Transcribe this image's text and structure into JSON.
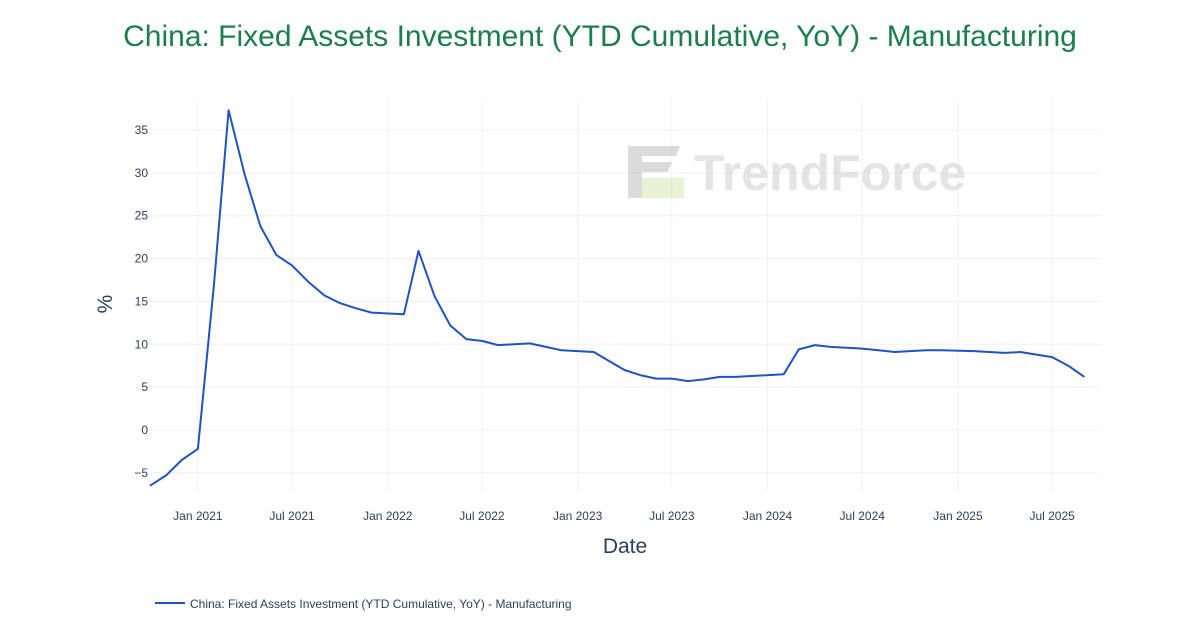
{
  "colors": {
    "title": "#1a7f4b",
    "line": "#1f53c4",
    "grid": "#eef0f4",
    "text": "#2a3f5f",
    "watermark": "#d9d9d9"
  },
  "watermark": {
    "logo_icon": "trendforce-logo-icon",
    "text": "TrendForce"
  },
  "chart_data": {
    "type": "line",
    "title": "China: Fixed Assets Investment (YTD Cumulative, YoY) - Manufacturing",
    "xlabel": "Date",
    "ylabel": "%",
    "ylim": [
      -7,
      38.5
    ],
    "xlim": [
      "2020-10-01",
      "2025-10-01"
    ],
    "grid": true,
    "legend_position": "bottom-left",
    "y_ticks": [
      "−5",
      "0",
      "5",
      "10",
      "15",
      "20",
      "25",
      "30",
      "35"
    ],
    "y_tick_values": [
      -5,
      0,
      5,
      10,
      15,
      20,
      25,
      30,
      35
    ],
    "x_ticks": [
      "Jan 2021",
      "Jul 2021",
      "Jan 2022",
      "Jul 2022",
      "Jan 2023",
      "Jul 2023",
      "Jan 2024",
      "Jul 2024",
      "Jan 2025",
      "Jul 2025"
    ],
    "x_tick_dates": [
      "2021-01-01",
      "2021-07-01",
      "2022-01-01",
      "2022-07-01",
      "2023-01-01",
      "2023-07-01",
      "2024-01-01",
      "2024-07-01",
      "2025-01-01",
      "2025-07-01"
    ],
    "series": [
      {
        "name": "China: Fixed Assets Investment (YTD Cumulative, YoY) - Manufacturing",
        "x": [
          "2020-10-01",
          "2020-11-01",
          "2020-12-01",
          "2021-01-01",
          "2021-02-01",
          "2021-03-01",
          "2021-04-01",
          "2021-05-01",
          "2021-06-01",
          "2021-07-01",
          "2021-08-01",
          "2021-09-01",
          "2021-10-01",
          "2021-11-01",
          "2021-12-01",
          "2022-02-01",
          "2022-03-01",
          "2022-04-01",
          "2022-05-01",
          "2022-06-01",
          "2022-07-01",
          "2022-08-01",
          "2022-09-01",
          "2022-10-01",
          "2022-11-01",
          "2022-12-01",
          "2023-02-01",
          "2023-03-01",
          "2023-04-01",
          "2023-05-01",
          "2023-06-01",
          "2023-07-01",
          "2023-08-01",
          "2023-09-01",
          "2023-10-01",
          "2023-11-01",
          "2023-12-01",
          "2024-02-01",
          "2024-03-01",
          "2024-04-01",
          "2024-05-01",
          "2024-06-01",
          "2024-07-01",
          "2024-08-01",
          "2024-09-01",
          "2024-10-01",
          "2024-11-01",
          "2024-12-01",
          "2025-02-01",
          "2025-03-01",
          "2025-04-01",
          "2025-05-01",
          "2025-06-01",
          "2025-07-01",
          "2025-08-01",
          "2025-09-01"
        ],
        "values": [
          -6.5,
          -5.3,
          -3.5,
          -2.2,
          17.0,
          37.3,
          29.8,
          23.8,
          20.4,
          19.2,
          17.3,
          15.7,
          14.8,
          14.2,
          13.7,
          13.5,
          20.9,
          15.6,
          12.2,
          10.6,
          10.4,
          9.9,
          10.0,
          10.1,
          9.7,
          9.3,
          9.1,
          8.1,
          7.0,
          6.4,
          6.0,
          6.0,
          5.7,
          5.9,
          6.2,
          6.2,
          6.3,
          6.5,
          9.4,
          9.9,
          9.7,
          9.6,
          9.5,
          9.3,
          9.1,
          9.2,
          9.3,
          9.3,
          9.2,
          9.1,
          9.0,
          9.1,
          8.8,
          8.5,
          7.5,
          6.2
        ]
      }
    ]
  }
}
